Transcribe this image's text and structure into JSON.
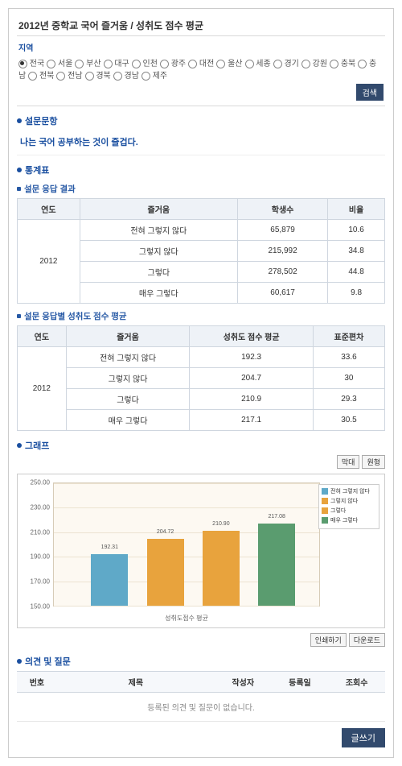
{
  "page_title": "2012년 중학교 국어 즐거움 / 성취도 점수 평균",
  "region": {
    "label": "지역",
    "options": [
      "전국",
      "서울",
      "부산",
      "대구",
      "인천",
      "광주",
      "대전",
      "울산",
      "세종",
      "경기",
      "강원",
      "충북",
      "충남",
      "전북",
      "전남",
      "경북",
      "경남",
      "제주"
    ],
    "selected": "전국",
    "search_btn": "검색"
  },
  "sections": {
    "survey": {
      "title": "설문문항",
      "question": "나는 국어 공부하는 것이 즐겁다."
    },
    "stats": {
      "title": "통계표"
    },
    "t1": {
      "title": "설문 응답 결과",
      "headers": [
        "연도",
        "즐거움",
        "학생수",
        "비율"
      ],
      "year": "2012",
      "rows": [
        {
          "a": "전혀 그렇지 않다",
          "b": "65,879",
          "c": "10.6"
        },
        {
          "a": "그렇지 않다",
          "b": "215,992",
          "c": "34.8"
        },
        {
          "a": "그렇다",
          "b": "278,502",
          "c": "44.8"
        },
        {
          "a": "매우 그렇다",
          "b": "60,617",
          "c": "9.8"
        }
      ]
    },
    "t2": {
      "title": "설문 응답별 성취도 점수 평균",
      "headers": [
        "연도",
        "즐거움",
        "성취도 점수 평균",
        "표준편차"
      ],
      "year": "2012",
      "rows": [
        {
          "a": "전혀 그렇지 않다",
          "b": "192.3",
          "c": "33.6"
        },
        {
          "a": "그렇지 않다",
          "b": "204.7",
          "c": "30"
        },
        {
          "a": "그렇다",
          "b": "210.9",
          "c": "29.3"
        },
        {
          "a": "매우 그렇다",
          "b": "217.1",
          "c": "30.5"
        }
      ]
    },
    "graph": {
      "title": "그래프"
    },
    "comments": {
      "title": "의견 및 질문"
    }
  },
  "chart": {
    "tools": [
      "막대",
      "원형"
    ],
    "bottom_buttons": [
      "인쇄하기",
      "다운로드"
    ],
    "categories": [
      "전혀 그렇지 않다",
      "그렇지 않다",
      "그렇다",
      "매우 그렇다"
    ],
    "values": [
      192.31,
      204.72,
      210.9,
      217.08
    ],
    "value_labels": [
      "192.31",
      "204.72",
      "210.90",
      "217.08"
    ],
    "bar_colors": [
      "#5fa9c8",
      "#e8a33d",
      "#e8a33d",
      "#5a9c6f"
    ],
    "ylim": [
      150,
      250
    ],
    "ytick_step": 20,
    "yticks": [
      "150.00",
      "170.00",
      "190.00",
      "210.00",
      "230.00",
      "250.00"
    ],
    "x_axis_label": "성취도점수 평균",
    "plot_bg": "#fdf9f2",
    "grid_color": "#ece3d1"
  },
  "comments_table": {
    "headers": [
      "번호",
      "제목",
      "작성자",
      "등록일",
      "조회수"
    ],
    "empty_text": "등록된 의견 및 질문이 없습니다.",
    "write_btn": "글쓰기"
  }
}
